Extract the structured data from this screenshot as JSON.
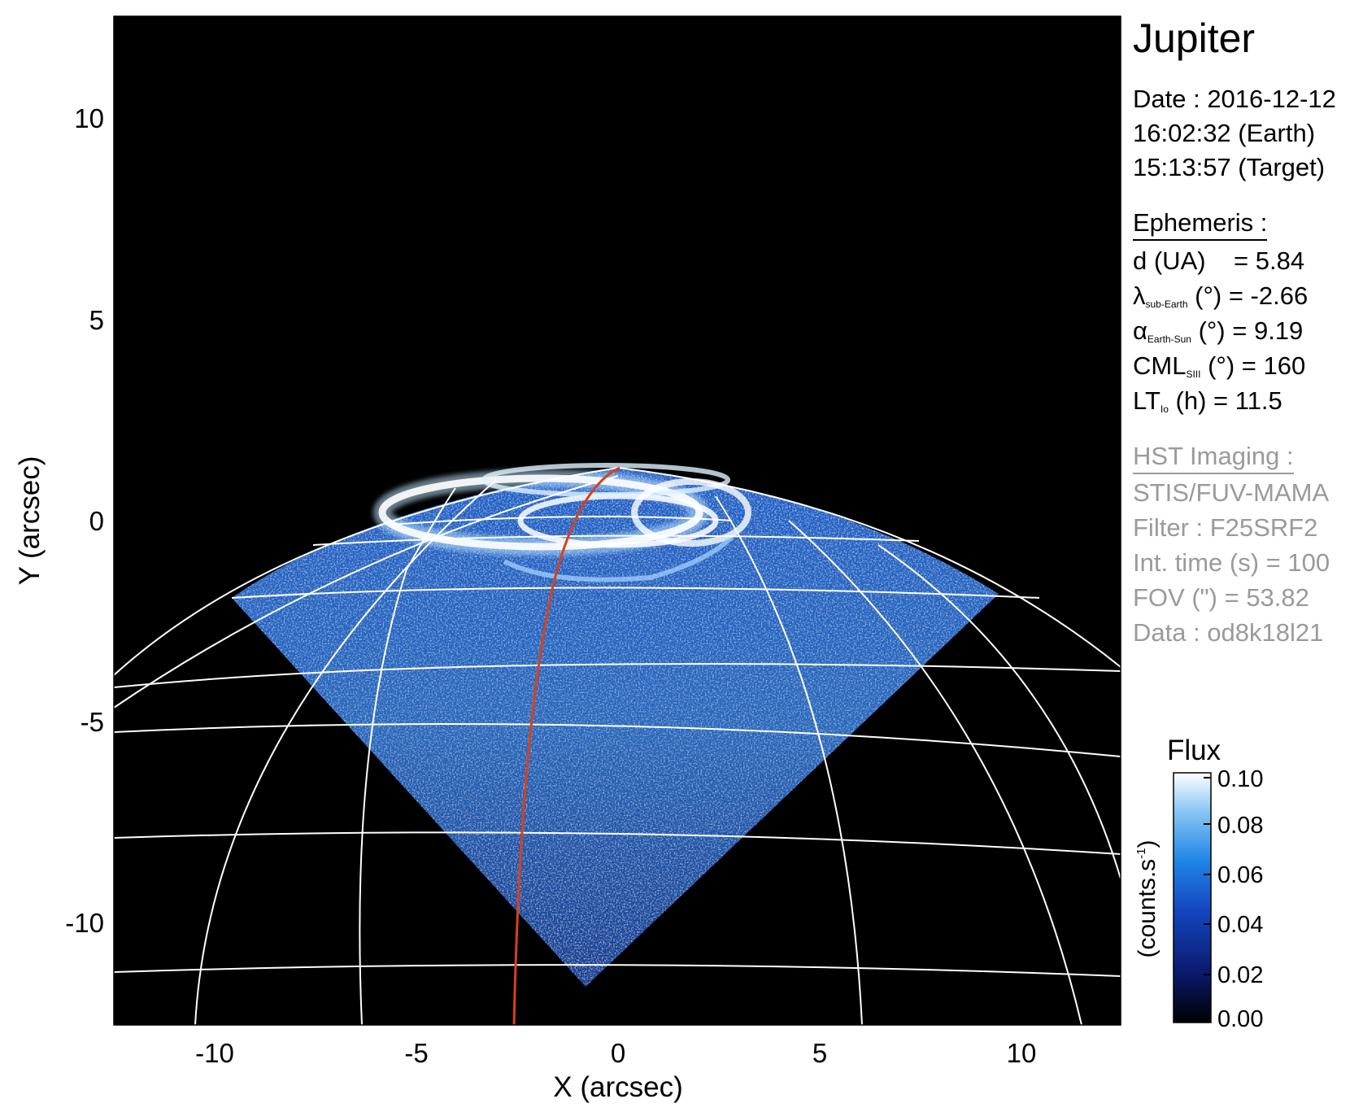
{
  "plot": {
    "xlabel": "X (arcsec)",
    "ylabel": "Y (arcsec)",
    "xlim": [
      -12.5,
      12.5
    ],
    "ylim": [
      -12.5,
      12.5
    ],
    "xticks": [
      "-10",
      "-5",
      "0",
      "5",
      "10"
    ],
    "yticks": [
      "10",
      "5",
      "0",
      "-5",
      "-10"
    ]
  },
  "info": {
    "title": "Jupiter",
    "date": "Date : 2016-12-12",
    "time_earth": "16:02:32 (Earth)",
    "time_target": "15:13:57 (Target)",
    "ephemeris_header": "Ephemeris :",
    "d_label": "d (UA)",
    "d_value": "= 5.84",
    "lambda_symbol": "λ",
    "lambda_sub": "sub-Earth",
    "lambda_rest": "(°) = -2.66",
    "alpha_symbol": "α",
    "alpha_sub": "Earth-Sun",
    "alpha_rest": "(°) = 9.19",
    "cml_symbol": "CML",
    "cml_sub": "SIII",
    "cml_rest": "(°) = 160",
    "lt_symbol": "LT",
    "lt_sub": "Io",
    "lt_rest": "(h) = 11.5",
    "hst_header": "HST Imaging :",
    "instrument": "STIS/FUV-MAMA",
    "filter": "Filter : F25SRF2",
    "int_time": "Int. time (s) = 100",
    "fov": "FOV (\") = 53.82",
    "data_id": "Data : od8k18l21"
  },
  "colorbar": {
    "title": "Flux",
    "label": "(counts.s",
    "label_sup": "-1",
    "label_end": ")",
    "ticks": [
      "0.10",
      "0.08",
      "0.06",
      "0.04",
      "0.02",
      "0.00"
    ]
  },
  "colors": {
    "background": "#000000",
    "grid": "#ffffff",
    "ref_meridian": "#d9401a"
  }
}
